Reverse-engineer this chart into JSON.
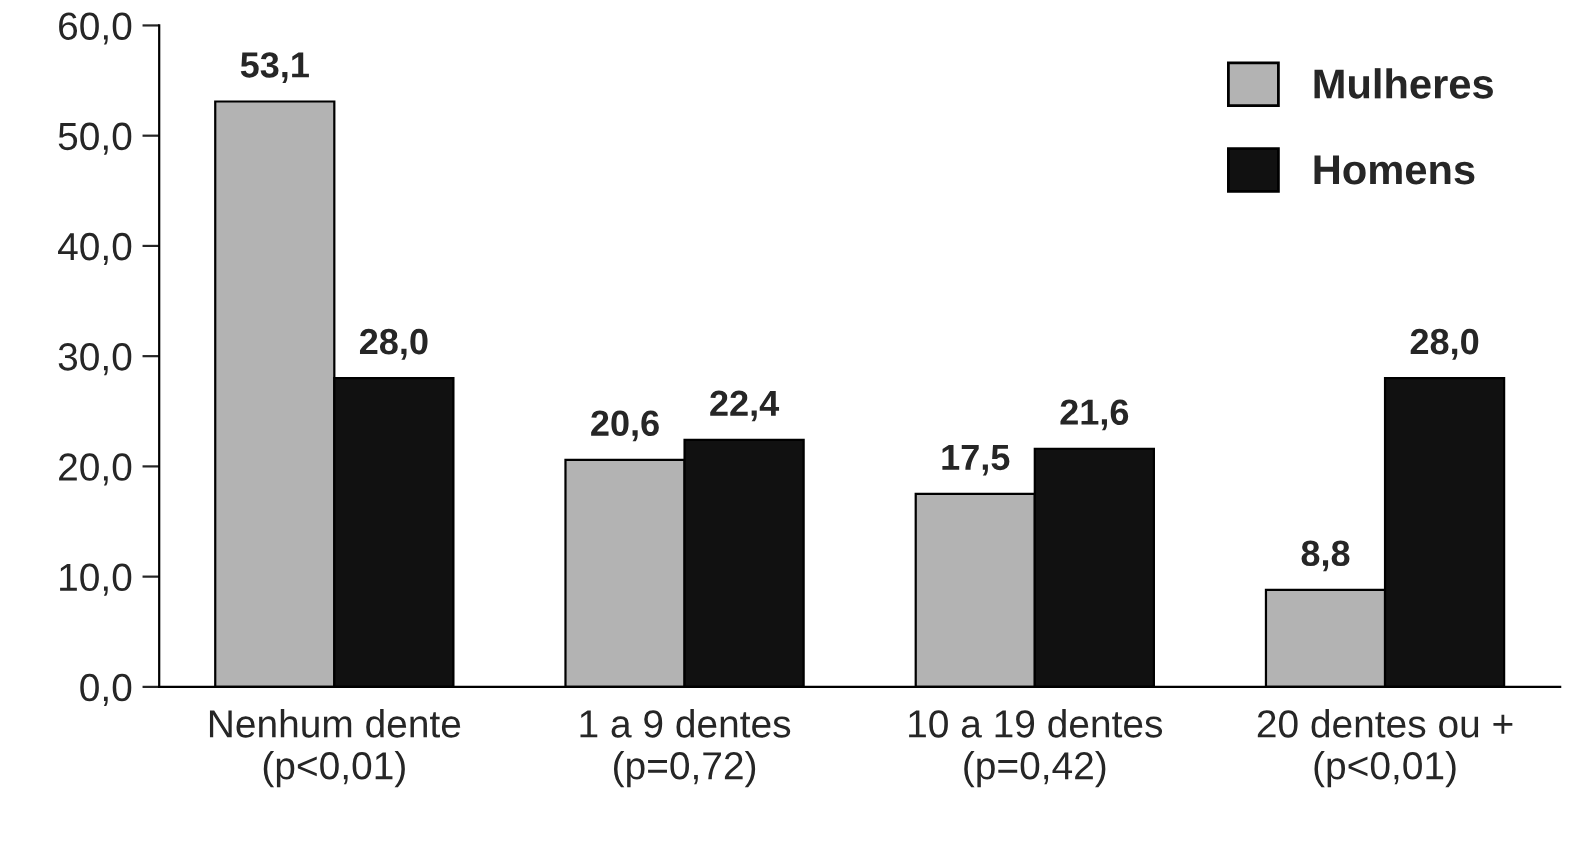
{
  "chart_data": {
    "type": "bar",
    "categories": [
      "Nenhum dente\n(p<0,01)",
      "1 a 9 dentes\n(p=0,72)",
      "10 a 19 dentes\n(p=0,42)",
      "20 dentes ou +\n(p<0,01)"
    ],
    "series": [
      {
        "name": "Mulheres",
        "color": "#b3b3b3",
        "values": [
          53.1,
          20.6,
          17.5,
          8.8
        ],
        "value_labels": [
          "53,1",
          "20,6",
          "17,5",
          "8,8"
        ]
      },
      {
        "name": "Homens",
        "color": "#111111",
        "values": [
          28.0,
          22.4,
          21.6,
          28.0
        ],
        "value_labels": [
          "28,0",
          "22,4",
          "21,6",
          "28,0"
        ]
      }
    ],
    "ylim": [
      0,
      60
    ],
    "yticks": [
      {
        "value": 0,
        "label": "0,0"
      },
      {
        "value": 10,
        "label": "10,0"
      },
      {
        "value": 20,
        "label": "20,0"
      },
      {
        "value": 30,
        "label": "30,0"
      },
      {
        "value": 40,
        "label": "40,0"
      },
      {
        "value": 50,
        "label": "50,0"
      },
      {
        "value": 60,
        "label": "60,0"
      }
    ],
    "grid": false,
    "legend": "top right"
  }
}
